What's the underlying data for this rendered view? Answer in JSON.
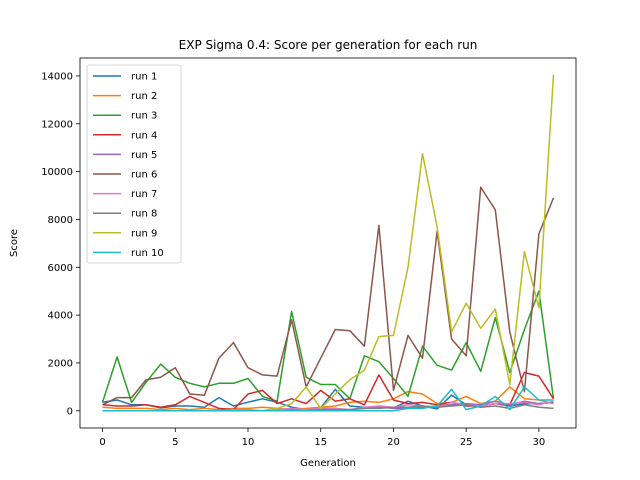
{
  "chart_data": {
    "type": "line",
    "title": "EXP Sigma 0.4: Score per generation for each run",
    "xlabel": "Generation",
    "ylabel": "Score",
    "xlim": [
      -1.55,
      32.55
    ],
    "ylim": [
      -720,
      14750
    ],
    "xticks": [
      0,
      5,
      10,
      15,
      20,
      25,
      30
    ],
    "yticks": [
      0,
      2000,
      4000,
      6000,
      8000,
      10000,
      12000,
      14000
    ],
    "grid": false,
    "legend_position": "top-left",
    "x": [
      0,
      1,
      2,
      3,
      4,
      5,
      6,
      7,
      8,
      9,
      10,
      11,
      12,
      13,
      14,
      15,
      16,
      17,
      18,
      19,
      20,
      21,
      22,
      23,
      24,
      25,
      26,
      27,
      28,
      29,
      30,
      31
    ],
    "series": [
      {
        "name": "run 1",
        "color": "#1f77b4",
        "values": [
          360,
          450,
          250,
          250,
          120,
          200,
          200,
          150,
          550,
          200,
          360,
          500,
          360,
          150,
          50,
          120,
          900,
          200,
          150,
          150,
          120,
          400,
          200,
          80,
          650,
          250,
          200,
          300,
          200,
          300,
          300,
          350
        ]
      },
      {
        "name": "run 2",
        "color": "#ff7f0e",
        "values": [
          150,
          100,
          100,
          100,
          50,
          100,
          50,
          100,
          50,
          100,
          100,
          150,
          100,
          50,
          100,
          150,
          200,
          350,
          400,
          350,
          500,
          800,
          700,
          300,
          350,
          600,
          300,
          400,
          1000,
          500,
          450,
          300
        ]
      },
      {
        "name": "run 3",
        "color": "#2ca02c",
        "values": [
          350,
          2250,
          350,
          1200,
          1950,
          1400,
          1150,
          1000,
          1150,
          1150,
          1350,
          600,
          400,
          4150,
          1400,
          1100,
          1100,
          500,
          2300,
          2050,
          1350,
          600,
          2700,
          1900,
          1700,
          2850,
          1650,
          3900,
          1600,
          3400,
          5000,
          500
        ]
      },
      {
        "name": "run 4",
        "color": "#d62728",
        "values": [
          250,
          200,
          200,
          250,
          150,
          250,
          600,
          350,
          100,
          50,
          700,
          850,
          300,
          500,
          300,
          850,
          400,
          500,
          250,
          1500,
          450,
          300,
          350,
          250,
          350,
          200,
          200,
          300,
          250,
          1600,
          1450,
          500
        ]
      },
      {
        "name": "run 5",
        "color": "#9467bd",
        "values": [
          0,
          0,
          0,
          0,
          0,
          0,
          0,
          0,
          0,
          0,
          0,
          0,
          0,
          50,
          0,
          100,
          50,
          50,
          100,
          150,
          100,
          100,
          150,
          200,
          250,
          300,
          250,
          400,
          250,
          400,
          300,
          350
        ]
      },
      {
        "name": "run 6",
        "color": "#8c564b",
        "values": [
          250,
          550,
          550,
          1300,
          1400,
          1800,
          700,
          650,
          2200,
          2850,
          1800,
          1500,
          1450,
          3800,
          1000,
          2200,
          3400,
          3350,
          2700,
          7750,
          850,
          3150,
          2200,
          7500,
          3000,
          2300,
          9350,
          8400,
          3300,
          800,
          7400,
          8900
        ]
      },
      {
        "name": "run 7",
        "color": "#e377c2",
        "values": [
          0,
          0,
          0,
          0,
          0,
          0,
          0,
          0,
          0,
          50,
          50,
          0,
          50,
          100,
          50,
          100,
          100,
          50,
          150,
          200,
          150,
          250,
          200,
          150,
          350,
          250,
          200,
          300,
          300,
          350,
          250,
          400
        ]
      },
      {
        "name": "run 8",
        "color": "#7f7f7f",
        "values": [
          0,
          0,
          0,
          0,
          0,
          0,
          0,
          0,
          0,
          0,
          0,
          0,
          0,
          0,
          0,
          50,
          50,
          50,
          100,
          100,
          150,
          150,
          200,
          150,
          200,
          250,
          150,
          200,
          100,
          250,
          150,
          100
        ]
      },
      {
        "name": "run 9",
        "color": "#bcbd22",
        "values": [
          0,
          0,
          0,
          0,
          0,
          0,
          0,
          0,
          0,
          0,
          0,
          0,
          100,
          300,
          1000,
          100,
          700,
          1300,
          1700,
          3100,
          3150,
          6000,
          10750,
          7700,
          3300,
          4500,
          3450,
          4250,
          1100,
          6650,
          4300,
          14050
        ]
      },
      {
        "name": "run 10",
        "color": "#17becf",
        "values": [
          0,
          0,
          0,
          0,
          0,
          0,
          0,
          0,
          0,
          0,
          0,
          0,
          0,
          0,
          0,
          0,
          0,
          0,
          0,
          0,
          0,
          100,
          100,
          200,
          900,
          50,
          200,
          600,
          50,
          1000,
          450,
          450
        ]
      }
    ]
  }
}
